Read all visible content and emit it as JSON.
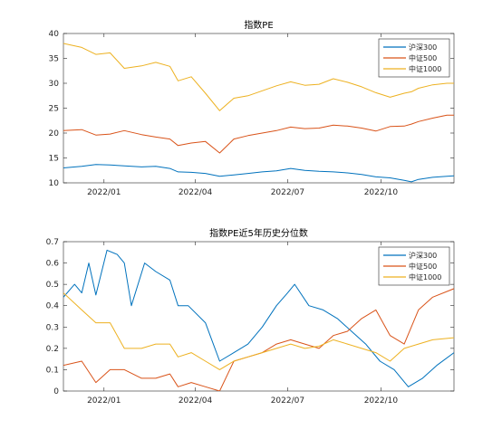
{
  "chart_data": [
    {
      "type": "line",
      "title": "指数PE",
      "x_tick_labels": [
        "2022/01",
        "2022/04",
        "2022/07",
        "2022/10"
      ],
      "y_tick_labels": [
        "10",
        "15",
        "20",
        "25",
        "30",
        "35",
        "40"
      ],
      "ylim": [
        10,
        40
      ],
      "x_range": [
        "2021-11-22",
        "2022-12-12"
      ],
      "legend_position": "top-right",
      "colors": [
        "#0072BD",
        "#D95319",
        "#EDB120"
      ],
      "series": [
        {
          "name": "沪深300",
          "color": "#0072BD",
          "points": [
            [
              "2021-11-22",
              13.0
            ],
            [
              "2021-12-10",
              13.3
            ],
            [
              "2021-12-24",
              13.7
            ],
            [
              "2022-01-07",
              13.6
            ],
            [
              "2022-01-21",
              13.4
            ],
            [
              "2022-02-07",
              13.2
            ],
            [
              "2022-02-21",
              13.3
            ],
            [
              "2022-03-07",
              12.9
            ],
            [
              "2022-03-15",
              12.2
            ],
            [
              "2022-03-28",
              12.1
            ],
            [
              "2022-04-11",
              11.9
            ],
            [
              "2022-04-25",
              11.3
            ],
            [
              "2022-05-09",
              11.6
            ],
            [
              "2022-05-23",
              11.9
            ],
            [
              "2022-06-06",
              12.2
            ],
            [
              "2022-06-20",
              12.4
            ],
            [
              "2022-07-04",
              12.9
            ],
            [
              "2022-07-18",
              12.5
            ],
            [
              "2022-08-01",
              12.3
            ],
            [
              "2022-08-15",
              12.2
            ],
            [
              "2022-08-29",
              12.0
            ],
            [
              "2022-09-12",
              11.7
            ],
            [
              "2022-09-26",
              11.2
            ],
            [
              "2022-10-10",
              11.0
            ],
            [
              "2022-10-24",
              10.5
            ],
            [
              "2022-10-31",
              10.2
            ],
            [
              "2022-11-07",
              10.7
            ],
            [
              "2022-11-21",
              11.1
            ],
            [
              "2022-12-05",
              11.3
            ],
            [
              "2022-12-12",
              11.4
            ]
          ]
        },
        {
          "name": "中证500",
          "color": "#D95319",
          "points": [
            [
              "2021-11-22",
              20.5
            ],
            [
              "2021-12-10",
              20.7
            ],
            [
              "2021-12-24",
              19.6
            ],
            [
              "2022-01-07",
              19.8
            ],
            [
              "2022-01-21",
              20.5
            ],
            [
              "2022-02-07",
              19.7
            ],
            [
              "2022-02-21",
              19.2
            ],
            [
              "2022-03-07",
              18.8
            ],
            [
              "2022-03-15",
              17.5
            ],
            [
              "2022-03-28",
              18.0
            ],
            [
              "2022-04-11",
              18.3
            ],
            [
              "2022-04-25",
              16.0
            ],
            [
              "2022-05-09",
              18.8
            ],
            [
              "2022-05-23",
              19.5
            ],
            [
              "2022-06-06",
              20.0
            ],
            [
              "2022-06-20",
              20.5
            ],
            [
              "2022-07-04",
              21.2
            ],
            [
              "2022-07-18",
              20.9
            ],
            [
              "2022-08-01",
              21.0
            ],
            [
              "2022-08-15",
              21.6
            ],
            [
              "2022-08-29",
              21.4
            ],
            [
              "2022-09-12",
              21.0
            ],
            [
              "2022-09-26",
              20.4
            ],
            [
              "2022-10-10",
              21.3
            ],
            [
              "2022-10-24",
              21.4
            ],
            [
              "2022-10-31",
              21.8
            ],
            [
              "2022-11-07",
              22.3
            ],
            [
              "2022-11-21",
              23.0
            ],
            [
              "2022-12-05",
              23.6
            ],
            [
              "2022-12-12",
              23.6
            ]
          ]
        },
        {
          "name": "中证1000",
          "color": "#EDB120",
          "points": [
            [
              "2021-11-22",
              38.0
            ],
            [
              "2021-12-10",
              37.2
            ],
            [
              "2021-12-24",
              35.8
            ],
            [
              "2022-01-07",
              36.1
            ],
            [
              "2022-01-21",
              33.0
            ],
            [
              "2022-02-07",
              33.5
            ],
            [
              "2022-02-21",
              34.2
            ],
            [
              "2022-03-07",
              33.4
            ],
            [
              "2022-03-15",
              30.5
            ],
            [
              "2022-03-28",
              31.3
            ],
            [
              "2022-04-11",
              28.0
            ],
            [
              "2022-04-25",
              24.5
            ],
            [
              "2022-05-09",
              27.0
            ],
            [
              "2022-05-23",
              27.5
            ],
            [
              "2022-06-06",
              28.5
            ],
            [
              "2022-06-20",
              29.5
            ],
            [
              "2022-07-04",
              30.3
            ],
            [
              "2022-07-18",
              29.6
            ],
            [
              "2022-08-01",
              29.8
            ],
            [
              "2022-08-15",
              30.9
            ],
            [
              "2022-08-29",
              30.2
            ],
            [
              "2022-09-12",
              29.3
            ],
            [
              "2022-09-26",
              28.1
            ],
            [
              "2022-10-10",
              27.2
            ],
            [
              "2022-10-24",
              28.0
            ],
            [
              "2022-10-31",
              28.3
            ],
            [
              "2022-11-07",
              29.0
            ],
            [
              "2022-11-21",
              29.7
            ],
            [
              "2022-12-05",
              30.0
            ],
            [
              "2022-12-12",
              30.0
            ]
          ]
        }
      ]
    },
    {
      "type": "line",
      "title": "指数PE近5年历史分位数",
      "x_tick_labels": [
        "2022/01",
        "2022/04",
        "2022/07",
        "2022/10"
      ],
      "y_tick_labels": [
        "0",
        "0.1",
        "0.2",
        "0.3",
        "0.4",
        "0.5",
        "0.6",
        "0.7"
      ],
      "ylim": [
        0,
        0.7
      ],
      "x_range": [
        "2021-11-22",
        "2022-12-12"
      ],
      "legend_position": "top-right",
      "colors": [
        "#0072BD",
        "#D95319",
        "#EDB120"
      ],
      "series": [
        {
          "name": "沪深300",
          "color": "#0072BD",
          "points": [
            [
              "2021-11-22",
              0.44
            ],
            [
              "2021-12-03",
              0.5
            ],
            [
              "2021-12-10",
              0.46
            ],
            [
              "2021-12-17",
              0.6
            ],
            [
              "2021-12-24",
              0.45
            ],
            [
              "2022-01-04",
              0.66
            ],
            [
              "2022-01-14",
              0.64
            ],
            [
              "2022-01-21",
              0.6
            ],
            [
              "2022-01-28",
              0.4
            ],
            [
              "2022-02-10",
              0.6
            ],
            [
              "2022-02-21",
              0.56
            ],
            [
              "2022-03-07",
              0.52
            ],
            [
              "2022-03-15",
              0.4
            ],
            [
              "2022-03-25",
              0.4
            ],
            [
              "2022-04-11",
              0.32
            ],
            [
              "2022-04-25",
              0.14
            ],
            [
              "2022-05-09",
              0.18
            ],
            [
              "2022-05-23",
              0.22
            ],
            [
              "2022-06-06",
              0.3
            ],
            [
              "2022-06-20",
              0.4
            ],
            [
              "2022-07-01",
              0.46
            ],
            [
              "2022-07-08",
              0.5
            ],
            [
              "2022-07-22",
              0.4
            ],
            [
              "2022-08-05",
              0.38
            ],
            [
              "2022-08-19",
              0.34
            ],
            [
              "2022-09-02",
              0.28
            ],
            [
              "2022-09-16",
              0.22
            ],
            [
              "2022-09-30",
              0.14
            ],
            [
              "2022-10-14",
              0.1
            ],
            [
              "2022-10-28",
              0.02
            ],
            [
              "2022-11-11",
              0.06
            ],
            [
              "2022-11-25",
              0.12
            ],
            [
              "2022-12-12",
              0.18
            ]
          ]
        },
        {
          "name": "中证500",
          "color": "#D95319",
          "points": [
            [
              "2021-11-22",
              0.12
            ],
            [
              "2021-12-10",
              0.14
            ],
            [
              "2021-12-24",
              0.04
            ],
            [
              "2022-01-07",
              0.1
            ],
            [
              "2022-01-21",
              0.1
            ],
            [
              "2022-02-07",
              0.06
            ],
            [
              "2022-02-21",
              0.06
            ],
            [
              "2022-03-07",
              0.08
            ],
            [
              "2022-03-15",
              0.02
            ],
            [
              "2022-03-28",
              0.04
            ],
            [
              "2022-04-11",
              0.02
            ],
            [
              "2022-04-25",
              0.0
            ],
            [
              "2022-05-09",
              0.14
            ],
            [
              "2022-05-23",
              0.16
            ],
            [
              "2022-06-06",
              0.18
            ],
            [
              "2022-06-20",
              0.22
            ],
            [
              "2022-07-04",
              0.24
            ],
            [
              "2022-07-18",
              0.22
            ],
            [
              "2022-08-01",
              0.2
            ],
            [
              "2022-08-15",
              0.26
            ],
            [
              "2022-08-29",
              0.28
            ],
            [
              "2022-09-12",
              0.34
            ],
            [
              "2022-09-26",
              0.38
            ],
            [
              "2022-10-10",
              0.26
            ],
            [
              "2022-10-24",
              0.22
            ],
            [
              "2022-11-07",
              0.38
            ],
            [
              "2022-11-21",
              0.44
            ],
            [
              "2022-12-12",
              0.48
            ]
          ]
        },
        {
          "name": "中证1000",
          "color": "#EDB120",
          "points": [
            [
              "2021-11-22",
              0.46
            ],
            [
              "2021-12-10",
              0.38
            ],
            [
              "2021-12-24",
              0.32
            ],
            [
              "2022-01-07",
              0.32
            ],
            [
              "2022-01-21",
              0.2
            ],
            [
              "2022-02-07",
              0.2
            ],
            [
              "2022-02-21",
              0.22
            ],
            [
              "2022-03-07",
              0.22
            ],
            [
              "2022-03-15",
              0.16
            ],
            [
              "2022-03-28",
              0.18
            ],
            [
              "2022-04-11",
              0.14
            ],
            [
              "2022-04-25",
              0.1
            ],
            [
              "2022-05-09",
              0.14
            ],
            [
              "2022-05-23",
              0.16
            ],
            [
              "2022-06-06",
              0.18
            ],
            [
              "2022-06-20",
              0.2
            ],
            [
              "2022-07-04",
              0.22
            ],
            [
              "2022-07-18",
              0.2
            ],
            [
              "2022-08-01",
              0.21
            ],
            [
              "2022-08-15",
              0.24
            ],
            [
              "2022-08-29",
              0.22
            ],
            [
              "2022-09-12",
              0.2
            ],
            [
              "2022-09-26",
              0.18
            ],
            [
              "2022-10-10",
              0.14
            ],
            [
              "2022-10-24",
              0.2
            ],
            [
              "2022-11-07",
              0.22
            ],
            [
              "2022-11-21",
              0.24
            ],
            [
              "2022-12-12",
              0.25
            ]
          ]
        }
      ]
    }
  ]
}
